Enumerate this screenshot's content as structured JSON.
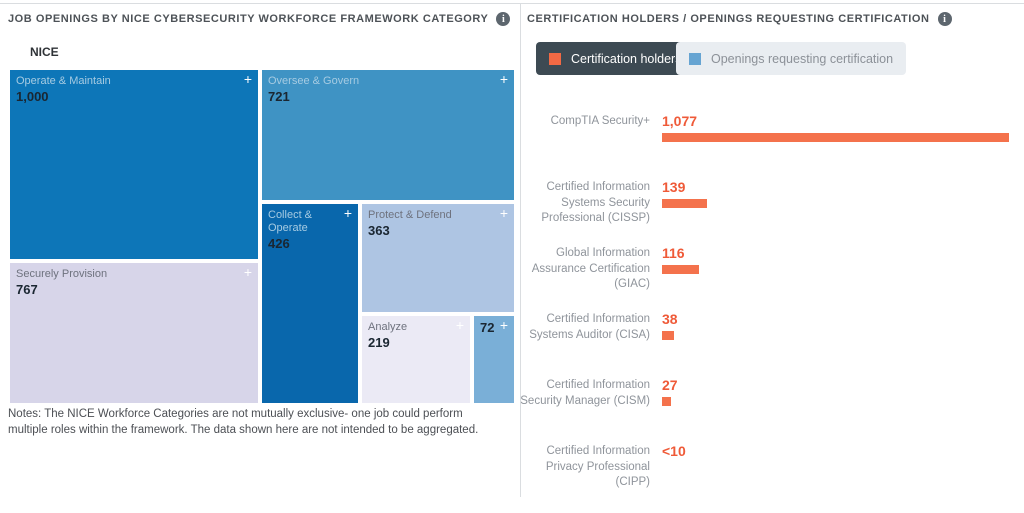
{
  "icons": {
    "info_glyph": "i",
    "expand_glyph": "+"
  },
  "left_panel": {
    "title": "JOB OPENINGS BY NICE CYBERSECURITY WORKFORCE FRAMEWORK CATEGORY",
    "group_label": "NICE",
    "notes": "Notes: The NICE Workforce Categories are not mutually exclusive- one job could perform multiple roles within the framework. The data shown here are not intended to be aggregated."
  },
  "right_panel": {
    "title": "CERTIFICATION HOLDERS / OPENINGS REQUESTING CERTIFICATION",
    "legend": [
      {
        "label": "Certification holders",
        "swatch_color": "#f26944",
        "active": true
      },
      {
        "label": "Openings requesting certification",
        "swatch_color": "#66a4d2",
        "active": false
      }
    ]
  },
  "chart_data": [
    {
      "type": "treemap",
      "title": "JOB OPENINGS BY NICE CYBERSECURITY WORKFORCE FRAMEWORK CATEGORY",
      "group": "NICE",
      "items": [
        {
          "label": "Operate & Maintain",
          "value": 1000,
          "value_label": "1,000",
          "color": "#0d76b8"
        },
        {
          "label": "Oversee & Govern",
          "value": 721,
          "value_label": "721",
          "color": "#3f93c4"
        },
        {
          "label": "Securely Provision",
          "value": 767,
          "value_label": "767",
          "color": "#d7d5e9"
        },
        {
          "label": "Collect & Operate",
          "value": 426,
          "value_label": "426",
          "color": "#0967ac"
        },
        {
          "label": "Protect & Defend",
          "value": 363,
          "value_label": "363",
          "color": "#aec5e3"
        },
        {
          "label": "Analyze",
          "value": 219,
          "value_label": "219",
          "color": "#ebeaf5"
        },
        {
          "label": "",
          "value": 72,
          "value_label": "72",
          "color": "#7aafd7"
        }
      ]
    },
    {
      "type": "bar",
      "orientation": "horizontal",
      "title": "CERTIFICATION HOLDERS / OPENINGS REQUESTING CERTIFICATION",
      "series_name": "Certification holders",
      "series_color": "#f4724c",
      "categories": [
        [
          "CompTIA Security+"
        ],
        [
          "Certified Information",
          "Systems Security",
          "Professional (CISSP)"
        ],
        [
          "Global Information",
          "Assurance Certification",
          "(GIAC)"
        ],
        [
          "Certified Information",
          "Systems Auditor (CISA)"
        ],
        [
          "Certified Information",
          "Security Manager (CISM)"
        ],
        [
          "Certified Information",
          "Privacy Professional",
          "(CIPP)"
        ]
      ],
      "values": [
        1077,
        139,
        116,
        38,
        27,
        0
      ],
      "value_labels": [
        "1,077",
        "139",
        "116",
        "38",
        "27",
        "<10"
      ],
      "legend_position": "top",
      "grid": false
    }
  ]
}
